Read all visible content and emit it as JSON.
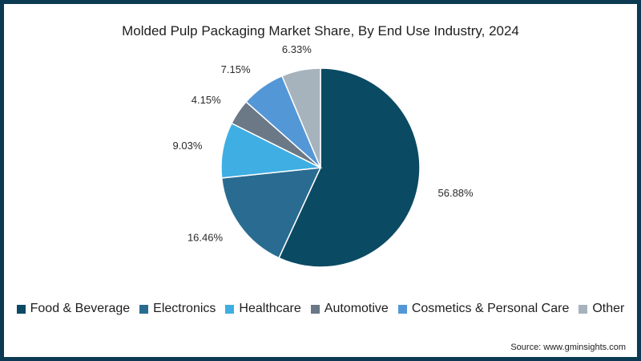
{
  "chart_data": {
    "type": "pie",
    "title": "Molded Pulp Packaging Market Share, By End Use Industry, 2024",
    "unit": "%",
    "slices": [
      {
        "name": "Food & Beverage",
        "value": 56.88,
        "label": "56.88%",
        "color": "#0b4a63"
      },
      {
        "name": "Electronics",
        "value": 16.46,
        "label": "16.46%",
        "color": "#2a6c91"
      },
      {
        "name": "Healthcare",
        "value": 9.03,
        "label": "9.03%",
        "color": "#3eaee3"
      },
      {
        "name": "Automotive",
        "value": 4.15,
        "label": "4.15%",
        "color": "#6b7886"
      },
      {
        "name": "Cosmetics & Personal Care",
        "value": 7.15,
        "label": "7.15%",
        "color": "#5497d6"
      },
      {
        "name": "Other",
        "value": 6.33,
        "label": "6.33%",
        "color": "#a6b3bd"
      }
    ],
    "start": "12 o'clock",
    "direction": "clockwise",
    "legend_position": "bottom"
  },
  "source": "Source: www.gminsights.com"
}
